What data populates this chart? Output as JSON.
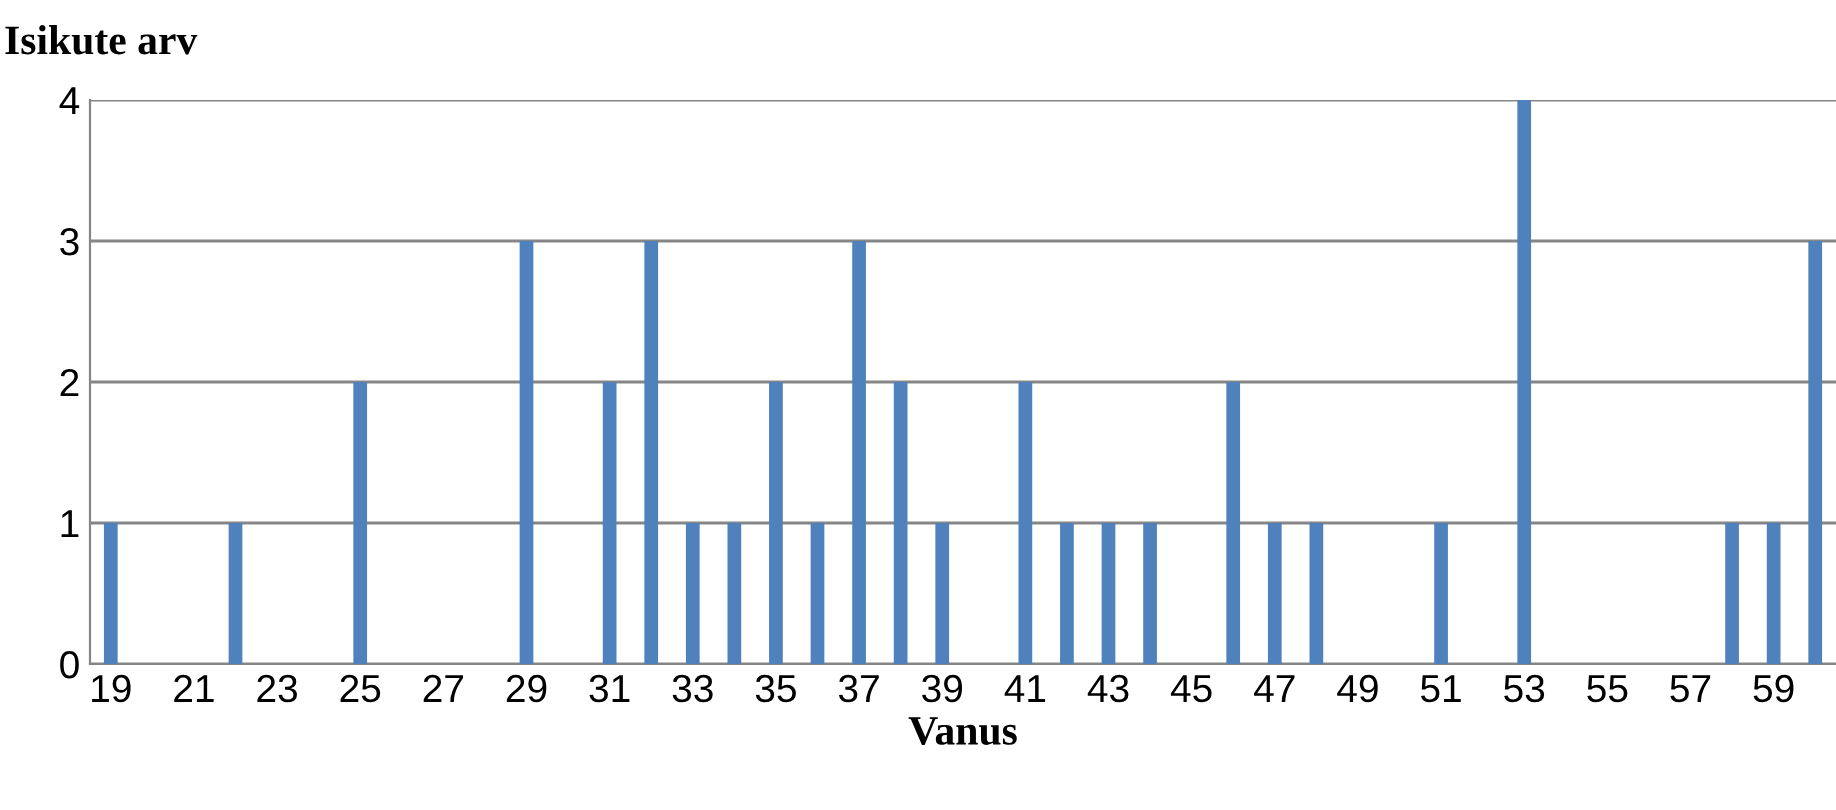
{
  "chart_data": {
    "type": "bar",
    "ylabel": "Isikute arv",
    "xlabel": "Vanus",
    "categories": [
      "19",
      null,
      "21",
      null,
      "23",
      null,
      "25",
      null,
      "27",
      null,
      "29",
      null,
      "31",
      null,
      "33",
      null,
      "35",
      null,
      "37",
      null,
      "39",
      null,
      "41",
      null,
      "43",
      null,
      "45",
      null,
      "47",
      null,
      "49",
      null,
      "51",
      null,
      "53",
      null,
      "55",
      null,
      "57",
      null,
      "59",
      null
    ],
    "values": [
      1,
      0,
      0,
      1,
      0,
      0,
      2,
      0,
      0,
      0,
      3,
      0,
      2,
      3,
      1,
      1,
      2,
      1,
      3,
      2,
      1,
      0,
      2,
      1,
      1,
      1,
      0,
      2,
      1,
      1,
      0,
      0,
      1,
      0,
      4,
      0,
      0,
      0,
      0,
      1,
      1,
      3
    ],
    "color": "#4f81bd",
    "ylim": [
      0,
      4
    ],
    "yticks": [
      0,
      1,
      2,
      3,
      4
    ],
    "grid": "y",
    "legend": false
  }
}
